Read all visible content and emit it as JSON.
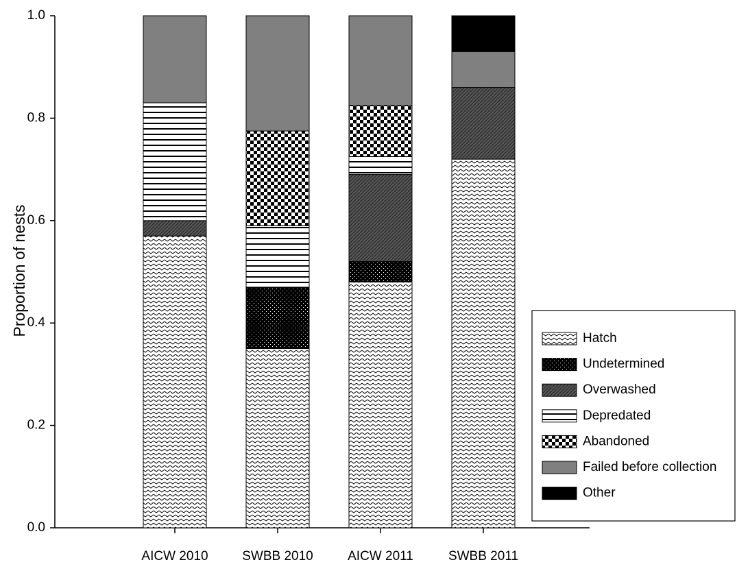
{
  "chart_data": {
    "type": "stacked_bar",
    "y_label": "Proportion of nests",
    "categories": [
      "AICW 2010",
      "SWBB 2010",
      "AICW 2011",
      "SWBB 2011"
    ],
    "series": [
      {
        "name": "Hatch",
        "color": "#000000",
        "pattern": "zigzag",
        "values": [
          0.57,
          0.35,
          0.48,
          0.72
        ]
      },
      {
        "name": "Undetermined",
        "color": "#000000",
        "pattern": "dots",
        "values": [
          0,
          0.12,
          0.04,
          0
        ]
      },
      {
        "name": "Overwashed",
        "color": "#555555",
        "pattern": "diagonal",
        "values": [
          0.03,
          0,
          0.17,
          0.14
        ]
      },
      {
        "name": "Depredated",
        "color": "#000000",
        "pattern": "horizontal",
        "values": [
          0.23,
          0.12,
          0.035,
          0
        ]
      },
      {
        "name": "Abandoned",
        "color": "#000000",
        "pattern": "checker",
        "values": [
          0,
          0.185,
          0.1,
          0
        ]
      },
      {
        "name": "Failed before collection",
        "color": "#808080",
        "pattern": "solid",
        "values": [
          0.17,
          0.225,
          0.175,
          0.07
        ]
      },
      {
        "name": "Other",
        "color": "#000000",
        "pattern": "solid",
        "values": [
          0,
          0,
          0,
          0.07
        ]
      }
    ],
    "ylim": [
      0,
      1
    ],
    "yticks": [
      {
        "value": 0,
        "label": "0.0"
      },
      0.2,
      0.4,
      0.6,
      0.8,
      {
        "value": 1,
        "label": "1.0"
      }
    ],
    "grid": false,
    "legend": "lower right"
  }
}
